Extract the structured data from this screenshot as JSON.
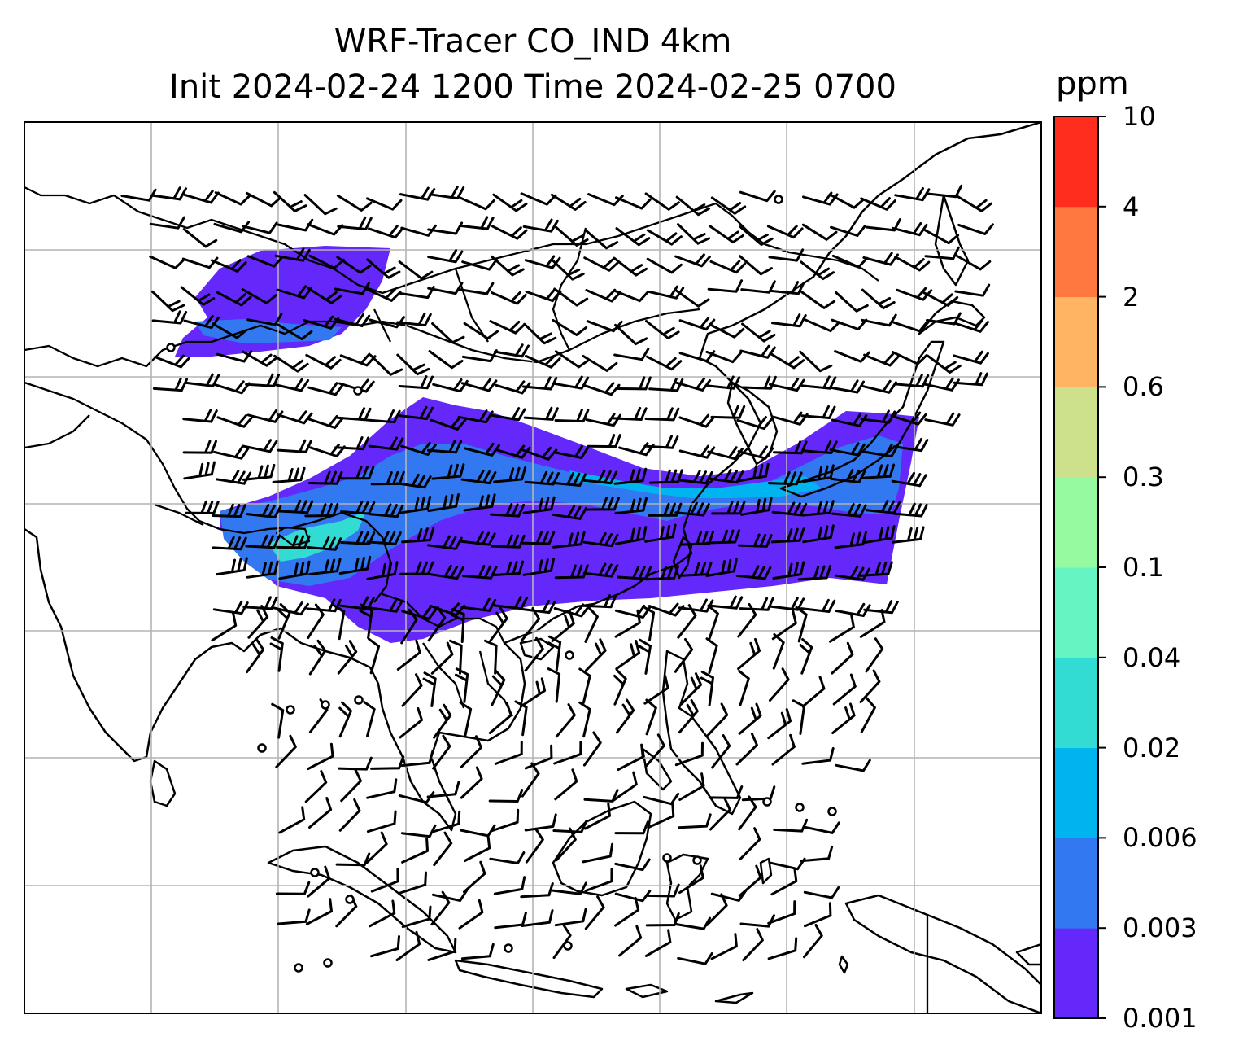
{
  "title": {
    "line1": "WRF-Tracer CO_IND 4km",
    "line2": "Init 2024-02-24 1200 Time 2024-02-25 0700"
  },
  "colorbar": {
    "unit": "ppm",
    "levels": [
      "0.001",
      "0.003",
      "0.006",
      "0.02",
      "0.04",
      "0.1",
      "0.3",
      "0.6",
      "2",
      "4",
      "10"
    ],
    "colors": [
      "#6428fa",
      "#3278f0",
      "#00b4f0",
      "#32dcd2",
      "#64f5c3",
      "#96faa0",
      "#cde18c",
      "#ffb464",
      "#ff7840",
      "#ff2d1e"
    ]
  },
  "map": {
    "plume_levels": [
      {
        "level": "0.001",
        "color": "#6428fa"
      },
      {
        "level": "0.003",
        "color": "#3278f0"
      },
      {
        "level": "0.006",
        "color": "#00b4f0"
      },
      {
        "level": "0.02",
        "color": "#32dcd2"
      }
    ],
    "gridline_color": "#b4b4b4",
    "features": [
      "coastlines",
      "country-borders",
      "gridlines",
      "wind-barbs",
      "calm-wind-circles"
    ]
  }
}
